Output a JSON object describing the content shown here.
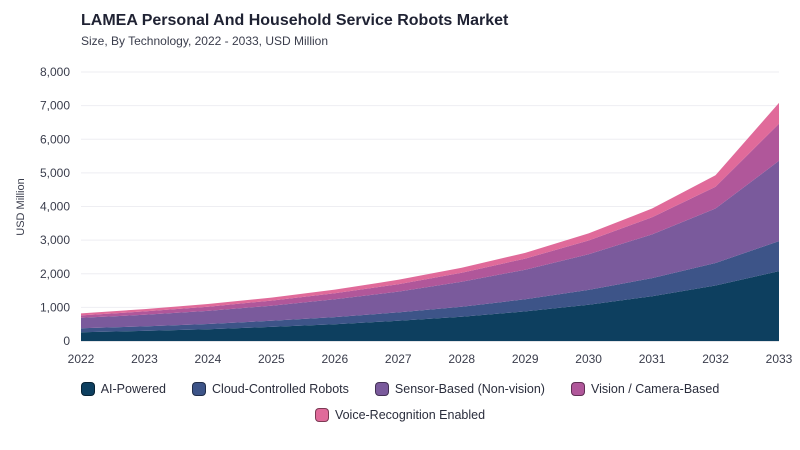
{
  "chart_data": {
    "type": "area",
    "stacked": true,
    "title": "LAMEA Personal And Household Service Robots Market",
    "subtitle": "Size, By Technology, 2022 - 2033, USD Million",
    "xlabel": "",
    "ylabel": "USD Million",
    "x": [
      "2022",
      "2023",
      "2024",
      "2025",
      "2026",
      "2027",
      "2028",
      "2029",
      "2030",
      "2031",
      "2032",
      "2033"
    ],
    "ylim": [
      0,
      8000
    ],
    "yticks": [
      "0",
      "1,000",
      "2,000",
      "3,000",
      "4,000",
      "5,000",
      "6,000",
      "7,000",
      "8,000"
    ],
    "grid": true,
    "legend_position": "bottom",
    "series": [
      {
        "name": "AI-Powered",
        "color": "#0d3f5f",
        "values": [
          260,
          300,
          350,
          420,
          500,
          600,
          720,
          880,
          1080,
          1330,
          1650,
          2080
        ]
      },
      {
        "name": "Cloud-Controlled Robots",
        "color": "#3d5488",
        "values": [
          120,
          135,
          155,
          180,
          210,
          250,
          300,
          360,
          440,
          540,
          670,
          890
        ]
      },
      {
        "name": "Sensor-Based (Non-vision)",
        "color": "#7a5a9c",
        "values": [
          310,
          345,
          390,
          450,
          530,
          620,
          740,
          880,
          1060,
          1300,
          1620,
          2390
        ]
      },
      {
        "name": "Vision / Camera-Based",
        "color": "#b0579a",
        "values": [
          70,
          100,
          125,
          150,
          180,
          220,
          270,
          330,
          410,
          510,
          650,
          1100
        ]
      },
      {
        "name": "Voice-Recognition Enabled",
        "color": "#e06a9a",
        "values": [
          60,
          70,
          80,
          90,
          110,
          130,
          150,
          170,
          210,
          260,
          340,
          620
        ]
      }
    ]
  }
}
